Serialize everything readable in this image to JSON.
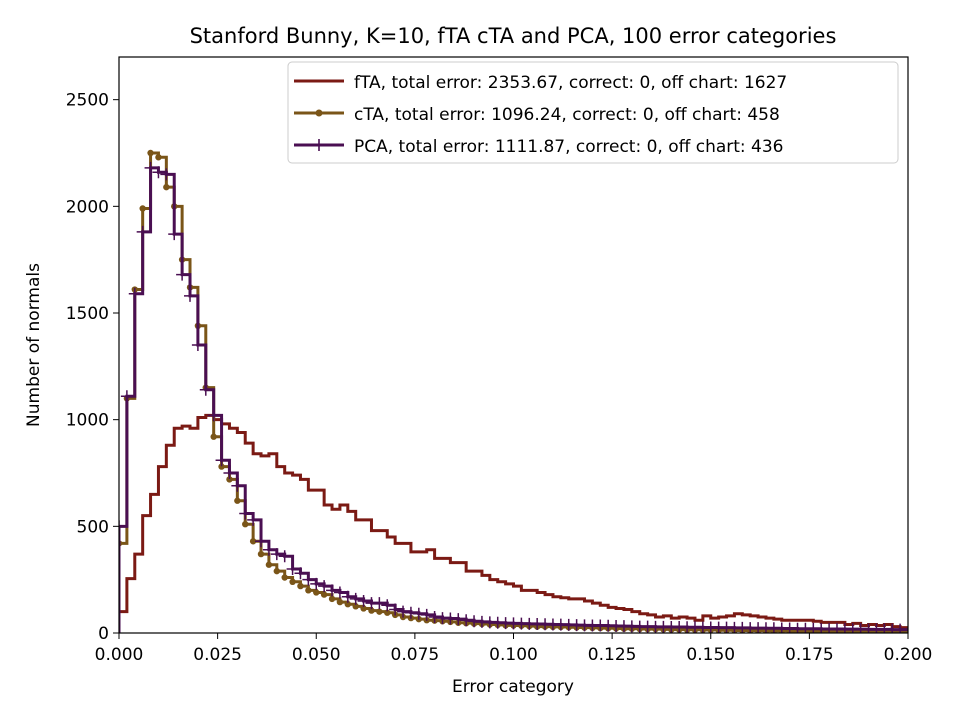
{
  "chart_data": {
    "type": "line",
    "title": "Stanford Bunny, K=10, fTA cTA and PCA, 100 error categories",
    "xlabel": "Error category",
    "ylabel": "Number of normals",
    "xlim": [
      0.0,
      0.2
    ],
    "ylim": [
      0,
      2700
    ],
    "x_ticks": [
      "0.000",
      "0.025",
      "0.050",
      "0.075",
      "0.100",
      "0.125",
      "0.150",
      "0.175",
      "0.200"
    ],
    "y_ticks": [
      "0",
      "500",
      "1000",
      "1500",
      "2000",
      "2500"
    ],
    "grid": false,
    "legend_position": "top-right",
    "bin_width": 0.002,
    "series": [
      {
        "name": "fTA, total error: 2353.67, correct: 0, off chart: 1627",
        "color": "#7b1a14",
        "marker": "none",
        "values": [
          100,
          255,
          370,
          550,
          650,
          780,
          880,
          960,
          970,
          960,
          1010,
          1020,
          1000,
          980,
          960,
          940,
          890,
          840,
          830,
          840,
          780,
          750,
          740,
          720,
          670,
          670,
          600,
          580,
          600,
          570,
          530,
          530,
          480,
          480,
          450,
          420,
          420,
          380,
          380,
          390,
          350,
          350,
          330,
          330,
          290,
          290,
          270,
          250,
          240,
          230,
          220,
          200,
          200,
          190,
          180,
          170,
          165,
          160,
          160,
          150,
          140,
          130,
          120,
          115,
          110,
          100,
          90,
          85,
          75,
          80,
          70,
          75,
          70,
          60,
          80,
          70,
          75,
          80,
          90,
          85,
          80,
          75,
          70,
          65,
          60,
          60,
          60,
          60,
          55,
          50,
          50,
          50,
          40,
          45,
          35,
          40,
          35,
          40,
          30,
          25
        ]
      },
      {
        "name": "cTA, total error: 1096.24, correct: 0, off chart: 458",
        "color": "#7a5518",
        "marker": "dot",
        "values": [
          420,
          1100,
          1610,
          1990,
          2250,
          2230,
          2090,
          2000,
          1750,
          1620,
          1440,
          1150,
          920,
          780,
          720,
          620,
          510,
          430,
          370,
          320,
          290,
          260,
          240,
          220,
          200,
          190,
          180,
          160,
          145,
          135,
          125,
          115,
          105,
          100,
          95,
          85,
          75,
          70,
          65,
          60,
          58,
          55,
          52,
          48,
          46,
          44,
          42,
          40,
          38,
          36,
          35,
          34,
          32,
          30,
          30,
          29,
          28,
          27,
          26,
          25,
          24,
          23,
          22,
          21,
          20,
          20,
          19,
          18,
          18,
          17,
          16,
          16,
          15,
          15,
          14,
          14,
          13,
          13,
          12,
          12,
          11,
          11,
          10,
          10,
          10,
          9,
          9,
          9,
          8,
          8,
          8,
          7,
          7,
          7,
          6,
          6,
          6,
          5,
          5,
          5
        ]
      },
      {
        "name": "PCA, total error: 1111.87, correct: 0, off chart: 436",
        "color": "#4a0f52",
        "marker": "plus",
        "values": [
          500,
          1110,
          1590,
          1880,
          2180,
          2160,
          2150,
          1870,
          1680,
          1580,
          1350,
          1140,
          1020,
          810,
          750,
          690,
          560,
          530,
          430,
          390,
          370,
          360,
          300,
          280,
          250,
          230,
          220,
          200,
          190,
          170,
          160,
          150,
          140,
          140,
          130,
          110,
          100,
          95,
          90,
          85,
          75,
          70,
          68,
          65,
          60,
          55,
          52,
          50,
          48,
          46,
          45,
          44,
          43,
          42,
          41,
          40,
          39,
          38,
          37,
          36,
          35,
          35,
          34,
          33,
          32,
          31,
          30,
          30,
          29,
          29,
          28,
          28,
          27,
          27,
          26,
          26,
          25,
          25,
          24,
          24,
          23,
          23,
          22,
          22,
          21,
          21,
          20,
          20,
          20,
          19,
          19,
          19,
          18,
          18,
          18,
          17,
          17,
          17,
          16,
          16
        ]
      }
    ]
  }
}
